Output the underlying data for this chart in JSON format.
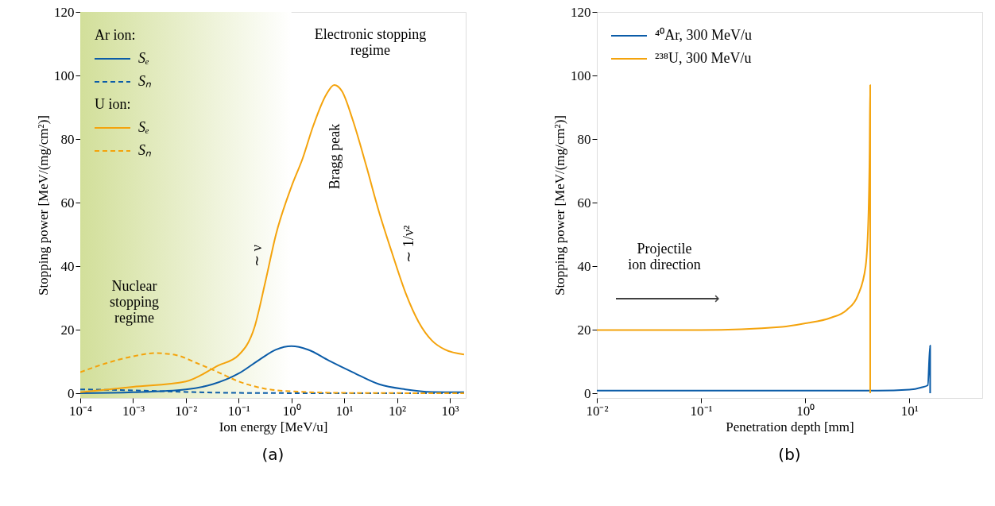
{
  "chart_data": [
    {
      "type": "line",
      "title": "(a)",
      "xlabel": "Ion energy [MeV/u]",
      "ylabel": "Stopping power [MeV/(mg/cm²)]",
      "log": "x",
      "legend": "top left",
      "xlim": [
        0.0001,
        2000
      ],
      "ylim": [
        -1.5,
        120
      ],
      "xticks": [
        {
          "value": 0.0001,
          "label": "10⁻⁴"
        },
        {
          "value": 0.001,
          "label": "10⁻³"
        },
        {
          "value": 0.01,
          "label": "10⁻²"
        },
        {
          "value": 0.1,
          "label": "10⁻¹"
        },
        {
          "value": 1,
          "label": "10⁰"
        },
        {
          "value": 10,
          "label": "10¹"
        },
        {
          "value": 100,
          "label": "10²"
        },
        {
          "value": 1000,
          "label": "10³"
        }
      ],
      "yticks": [
        0,
        20,
        40,
        60,
        80,
        100,
        120
      ],
      "bands": [
        {
          "axis": "x",
          "from": 0.0001,
          "to": 1,
          "color": "#d2df9a"
        }
      ],
      "series": [
        {
          "name": "Sₑ",
          "color": "#0b5ca8",
          "line_style": "solid",
          "x": [
            0.0001,
            0.001,
            0.01,
            0.032,
            0.1,
            0.26,
            0.51,
            1,
            2.07,
            5.1,
            14.5,
            46,
            145,
            457,
            1860
          ],
          "values": [
            0,
            0.3,
            1.2,
            2.8,
            6.2,
            10.8,
            13.7,
            14.8,
            13.7,
            10.3,
            6.6,
            2.8,
            1.2,
            0.4,
            0.3
          ]
        },
        {
          "name": "Sₙ",
          "color": "#0b5ca8",
          "line_style": "dashed",
          "x": [
            0.0001,
            0.001,
            0.01,
            0.1,
            10,
            1860
          ],
          "values": [
            1.2,
            0.9,
            0.4,
            0.1,
            0,
            0
          ]
        },
        {
          "name": "Sₑ",
          "color": "#f4a30c",
          "line_style": "solid",
          "x": [
            0.0001,
            0.001,
            0.01,
            0.041,
            0.1,
            0.2,
            0.32,
            0.51,
            1,
            1.64,
            2.57,
            4.57,
            6.46,
            9.1,
            14.5,
            25.7,
            45.7,
            81,
            145,
            257,
            457,
            813,
            1860
          ],
          "values": [
            0.3,
            2,
            3.7,
            8.7,
            12,
            20.8,
            35,
            50,
            65,
            74,
            84,
            94,
            97,
            95,
            86,
            72,
            57,
            44,
            31.6,
            22.4,
            16.6,
            13.7,
            12.2
          ]
        },
        {
          "name": "Sₙ",
          "color": "#f4a30c",
          "line_style": "dashed",
          "x": [
            0.0001,
            0.00032,
            0.001,
            0.0026,
            0.0065,
            0.016,
            0.041,
            0.1,
            0.32,
            1,
            10,
            1860
          ],
          "values": [
            6.6,
            9.5,
            11.6,
            12.6,
            12,
            9.5,
            6.6,
            3.7,
            1.4,
            0.6,
            0.1,
            0
          ]
        }
      ],
      "annotations": [
        "Ar ion:",
        "U ion:",
        "Electronic stopping\nregime",
        "Nuclear\nstopping\nregime",
        "Bragg peak",
        "∼ ν",
        "∼ 1/ν²"
      ]
    },
    {
      "type": "line",
      "title": "(b)",
      "xlabel": "Penetration depth [mm]",
      "ylabel": "Stopping power [MeV/(mg/cm²)]",
      "log": "x",
      "legend": "top left",
      "xlim": [
        0.01,
        50
      ],
      "ylim": [
        -1.5,
        120
      ],
      "xticks": [
        {
          "value": 0.01,
          "label": "10⁻²"
        },
        {
          "value": 0.1,
          "label": "10⁻¹"
        },
        {
          "value": 1,
          "label": "10⁰"
        },
        {
          "value": 10,
          "label": "10¹"
        }
      ],
      "yticks": [
        0,
        20,
        40,
        60,
        80,
        100,
        120
      ],
      "series": [
        {
          "name": "⁴⁰Ar, 300 MeV/u",
          "color": "#0b5ca8",
          "line_style": "solid",
          "x": [
            0.01,
            1,
            5,
            10,
            13,
            15,
            15.8,
            15.8
          ],
          "values": [
            0.8,
            0.8,
            0.8,
            1.1,
            1.8,
            2.5,
            15,
            0
          ]
        },
        {
          "name": "²³⁸U, 300 MeV/u",
          "color": "#f4a30c",
          "line_style": "solid",
          "x": [
            0.01,
            0.1,
            0.6,
            1,
            1.74,
            2.5,
            3.2,
            3.8,
            4.05,
            4.15,
            4.2,
            4.2
          ],
          "values": [
            19.9,
            19.9,
            20.9,
            22,
            23.7,
            26.2,
            30.8,
            40,
            57,
            77,
            97,
            0
          ]
        }
      ],
      "annotations": [
        "Projectile\nion direction"
      ]
    }
  ]
}
